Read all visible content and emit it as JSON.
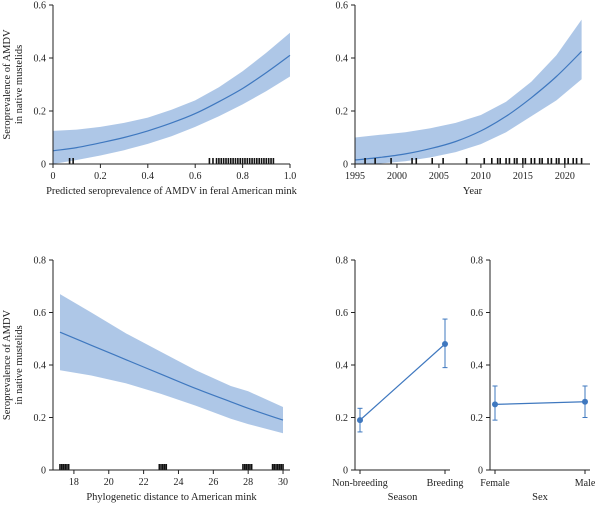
{
  "colors": {
    "band": "#aac4e6",
    "line": "#3f78bf",
    "rug": "#111111",
    "axis": "#222222"
  },
  "chart_data": [
    {
      "id": "p1",
      "type": "line",
      "xlabel": "Predicted seroprevalence of AMDV in feral American mink",
      "ylabel": [
        "Seroprevalence of AMDV",
        "in native mustelids"
      ],
      "xlim": [
        0,
        1
      ],
      "ylim": [
        0,
        0.6
      ],
      "xticks": [
        0,
        0.2,
        0.4,
        0.6,
        0.8,
        1.0
      ],
      "xtick_labels": [
        "0",
        "0.2",
        "0.4",
        "0.6",
        "0.8",
        "1.0"
      ],
      "yticks": [
        0,
        0.2,
        0.4,
        0.6
      ],
      "ytick_labels": [
        "0",
        "0.2",
        "0.4",
        "0.6"
      ],
      "fit": {
        "x": [
          0,
          0.1,
          0.2,
          0.3,
          0.4,
          0.5,
          0.6,
          0.7,
          0.8,
          0.9,
          1.0
        ],
        "y": [
          0.05,
          0.062,
          0.08,
          0.1,
          0.125,
          0.155,
          0.19,
          0.235,
          0.285,
          0.345,
          0.41
        ]
      },
      "band_lower": [
        0.0,
        0.015,
        0.032,
        0.052,
        0.076,
        0.105,
        0.14,
        0.18,
        0.225,
        0.275,
        0.33
      ],
      "band_upper": [
        0.125,
        0.13,
        0.14,
        0.155,
        0.175,
        0.205,
        0.24,
        0.29,
        0.35,
        0.42,
        0.495
      ],
      "rug": [
        0.07,
        0.085,
        0.66,
        0.675,
        0.69,
        0.7,
        0.71,
        0.72,
        0.73,
        0.74,
        0.75,
        0.76,
        0.77,
        0.78,
        0.79,
        0.8,
        0.81,
        0.82,
        0.83,
        0.84,
        0.85,
        0.86,
        0.87,
        0.88,
        0.89,
        0.9,
        0.91,
        0.92,
        0.93
      ]
    },
    {
      "id": "p2",
      "type": "line",
      "xlabel": "Year",
      "ylabel": [],
      "xlim": [
        1995,
        2023
      ],
      "ylim": [
        0,
        0.6
      ],
      "xticks": [
        1995,
        2000,
        2005,
        2010,
        2015,
        2020
      ],
      "xtick_labels": [
        "1995",
        "2000",
        "2005",
        "2010",
        "2015",
        "2020"
      ],
      "yticks": [
        0,
        0.2,
        0.4,
        0.6
      ],
      "ytick_labels": [
        "0",
        "0.2",
        "0.4",
        "0.6"
      ],
      "fit": {
        "x": [
          1995,
          1998,
          2001,
          2004,
          2007,
          2010,
          2013,
          2016,
          2019,
          2022
        ],
        "y": [
          0.015,
          0.025,
          0.038,
          0.058,
          0.085,
          0.125,
          0.18,
          0.25,
          0.33,
          0.425
        ]
      },
      "band_lower": [
        0.0,
        0.002,
        0.01,
        0.025,
        0.045,
        0.075,
        0.12,
        0.18,
        0.24,
        0.32
      ],
      "band_upper": [
        0.1,
        0.11,
        0.12,
        0.135,
        0.155,
        0.185,
        0.235,
        0.31,
        0.41,
        0.545
      ],
      "rug": [
        1996.2,
        1997.4,
        1999.3,
        2001.8,
        2002.3,
        2004.2,
        2005.5,
        2008.3,
        2010.4,
        2011.3,
        2012.0,
        2012.3,
        2013.0,
        2013.4,
        2014.0,
        2014.3,
        2015.0,
        2015.3,
        2016.0,
        2016.4,
        2017.0,
        2017.3,
        2018.0,
        2018.4,
        2019.0,
        2019.3,
        2020.0,
        2020.4,
        2021.0,
        2021.4,
        2022.0
      ]
    },
    {
      "id": "p3",
      "type": "line",
      "xlabel": "Phylogenetic distance to American mink",
      "ylabel": [
        "Seroprevalence of AMDV",
        "in native mustelids"
      ],
      "xlim": [
        16.8,
        30.4
      ],
      "ylim": [
        0,
        0.8
      ],
      "xticks": [
        18,
        20,
        22,
        24,
        26,
        28,
        30
      ],
      "xtick_labels": [
        "18",
        "20",
        "22",
        "24",
        "26",
        "28",
        "30"
      ],
      "yticks": [
        0,
        0.2,
        0.4,
        0.6,
        0.8
      ],
      "ytick_labels": [
        "0",
        "0.2",
        "0.4",
        "0.6",
        "0.8"
      ],
      "fit": {
        "x": [
          17.2,
          19,
          21,
          23,
          25,
          27,
          28,
          30
        ],
        "y": [
          0.525,
          0.475,
          0.42,
          0.365,
          0.31,
          0.26,
          0.235,
          0.19
        ]
      },
      "band_lower": [
        0.38,
        0.36,
        0.33,
        0.29,
        0.245,
        0.195,
        0.175,
        0.14
      ],
      "band_upper": [
        0.67,
        0.6,
        0.52,
        0.45,
        0.38,
        0.32,
        0.3,
        0.24
      ],
      "rug": [
        17.2,
        17.3,
        17.4,
        17.5,
        17.6,
        17.7,
        22.9,
        23.0,
        23.1,
        23.2,
        23.3,
        27.7,
        27.8,
        27.9,
        28.0,
        28.1,
        28.2,
        29.4,
        29.5,
        29.6,
        29.7,
        29.8,
        29.9,
        30.0
      ]
    },
    {
      "id": "p4",
      "type": "line",
      "xlabel": "Season",
      "ylabel": [],
      "categories": [
        "Non-breeding",
        "Breeding"
      ],
      "ylim": [
        0,
        0.8
      ],
      "yticks": [
        0,
        0.2,
        0.4,
        0.6,
        0.8
      ],
      "ytick_labels": [
        "0",
        "0.2",
        "0.4",
        "0.6",
        "0.8"
      ],
      "values": [
        0.19,
        0.48
      ],
      "err_low": [
        0.145,
        0.39
      ],
      "err_high": [
        0.235,
        0.575
      ]
    },
    {
      "id": "p5",
      "type": "line",
      "xlabel": "Sex",
      "ylabel": [],
      "categories": [
        "Female",
        "Male"
      ],
      "ylim": [
        0,
        0.8
      ],
      "yticks": [
        0,
        0.2,
        0.4,
        0.6,
        0.8
      ],
      "ytick_labels": [
        "0",
        "0.2",
        "0.4",
        "0.6",
        "0.8"
      ],
      "values": [
        0.25,
        0.26
      ],
      "err_low": [
        0.19,
        0.2
      ],
      "err_high": [
        0.32,
        0.32
      ]
    }
  ]
}
